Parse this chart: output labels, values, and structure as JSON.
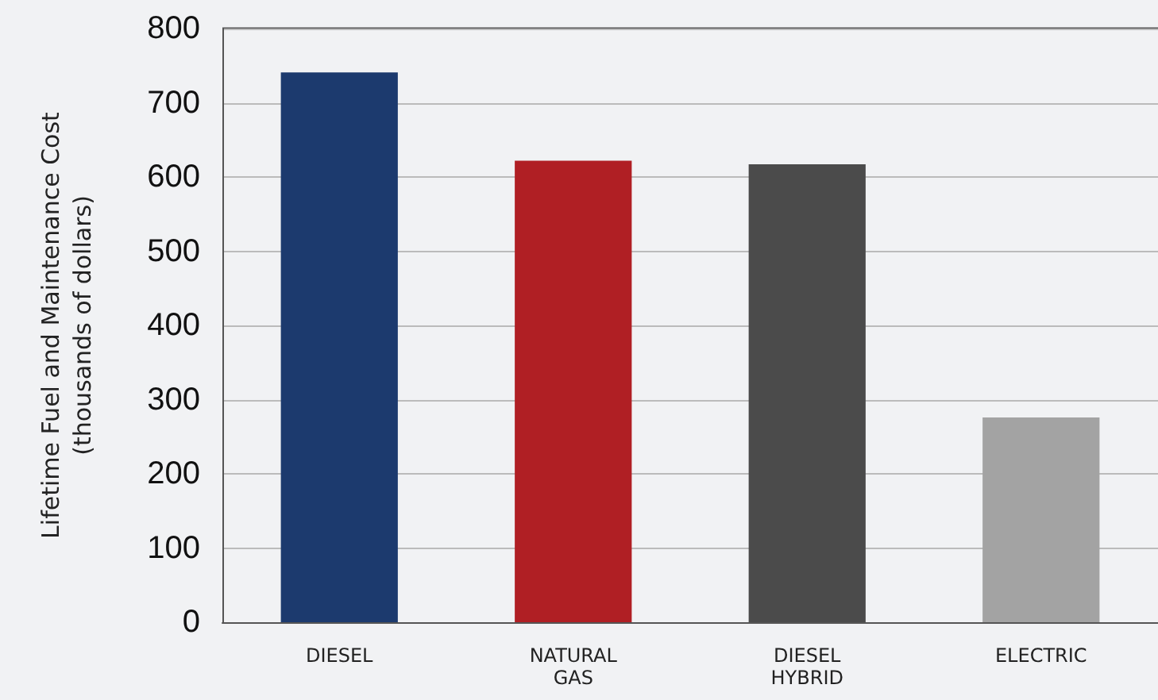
{
  "chart_data": {
    "type": "bar",
    "ylabel": "Lifetime Fuel and Maintenance Cost\n(thousands of dollars)",
    "categories": [
      "DIESEL",
      "NATURAL\nGAS",
      "DIESEL\nHYBRID",
      "ELECTRIC"
    ],
    "values": [
      741,
      622,
      617,
      276
    ],
    "colors": [
      "#1c3a6e",
      "#b01f24",
      "#4b4b4b",
      "#a3a3a3"
    ],
    "ylim": [
      0,
      800
    ],
    "yticks": [
      0,
      100,
      200,
      300,
      400,
      500,
      600,
      700,
      800
    ],
    "grid": "y"
  }
}
